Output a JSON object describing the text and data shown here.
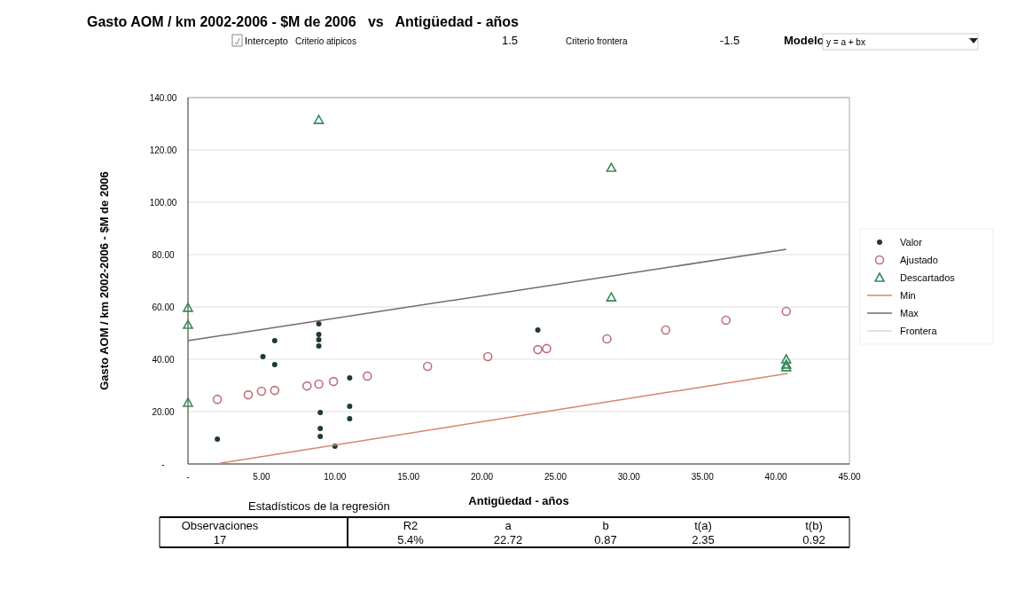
{
  "chart_data": {
    "type": "scatter",
    "title": "Gasto AOM / km 2002-2006 - $M de 2006   vs   Antigüedad - años",
    "xlabel": "Antigüedad - años",
    "ylabel": "Gasto AOM / km 2002-2006 - $M de 2006",
    "xlim": [
      0,
      45
    ],
    "xticks": [
      {
        "value": 0,
        "label": "-"
      },
      {
        "value": 5,
        "label": "5.00"
      },
      {
        "value": 10,
        "label": "10.00"
      },
      {
        "value": 15,
        "label": "15.00"
      },
      {
        "value": 20,
        "label": "20.00"
      },
      {
        "value": 25,
        "label": "25.00"
      },
      {
        "value": 30,
        "label": "30.00"
      },
      {
        "value": 35,
        "label": "35.00"
      },
      {
        "value": 40,
        "label": "40.00"
      },
      {
        "value": 45,
        "label": "45.00"
      }
    ],
    "ylim": [
      0,
      140
    ],
    "yticks": [
      {
        "value": 0,
        "label": "-"
      },
      {
        "value": 20,
        "label": "20.00"
      },
      {
        "value": 40,
        "label": "40.00"
      },
      {
        "value": 60,
        "label": "60.00"
      },
      {
        "value": 80,
        "label": "80.00"
      },
      {
        "value": 100,
        "label": "100.00"
      },
      {
        "value": 120,
        "label": "120.00"
      },
      {
        "value": 140,
        "label": "140.00"
      }
    ],
    "grid": "y",
    "legend": "right",
    "series": [
      {
        "name": "Valor",
        "marker": "circle",
        "color": "#1f3b33",
        "x": [
          2.0,
          5.1,
          5.9,
          5.9,
          8.9,
          8.9,
          8.9,
          8.9,
          9.0,
          9.0,
          9.0,
          10.0,
          11.0,
          11.0,
          11.0,
          23.8
        ],
        "values": [
          9.5,
          41.0,
          47.1,
          38.0,
          53.6,
          49.5,
          47.5,
          45.1,
          19.7,
          13.6,
          10.5,
          6.8,
          32.9,
          22.0,
          17.3,
          51.2
        ]
      },
      {
        "name": "Ajustado",
        "marker": "circle",
        "color": "#c0707a",
        "x": [
          2.0,
          4.1,
          5.0,
          5.9,
          8.1,
          8.9,
          9.9,
          12.2,
          16.3,
          20.4,
          23.8,
          24.4,
          28.5,
          32.5,
          36.6,
          40.7
        ],
        "values": [
          24.7,
          26.4,
          27.8,
          28.1,
          29.8,
          30.5,
          31.5,
          33.6,
          37.3,
          41.0,
          43.7,
          44.1,
          47.8,
          51.2,
          54.9,
          58.3
        ]
      },
      {
        "name": "Descartados",
        "marker": "triangle",
        "color": "#3a8a5a",
        "x": [
          8.9,
          28.8,
          28.8,
          0,
          0,
          0,
          40.7,
          40.7,
          40.7
        ],
        "values": [
          131.5,
          113.2,
          63.7,
          59.7,
          53.2,
          23.4,
          40,
          38,
          37
        ]
      },
      {
        "name": "Min",
        "type": "line",
        "marker": "none",
        "color": "#d4876a",
        "x": [
          2.2,
          40.8
        ],
        "values": [
          0.3,
          34.6
        ]
      },
      {
        "name": "Max",
        "type": "line",
        "marker": "none",
        "color": "#7a6a5e",
        "x": [
          0,
          40.7
        ],
        "values": [
          47.1,
          82.0
        ]
      },
      {
        "name": "Frontera",
        "type": "line",
        "marker": "none",
        "color": "#d8d8d8"
      }
    ],
    "annotations": [
      "Intercepto",
      "Criterio atipicos",
      "1.5",
      "Criterio frontera",
      "-1.5",
      "Modelo",
      "y = a + bx",
      "Estadísticos de la regresión",
      "Observaciones",
      "R2",
      "a",
      "b",
      "t(a)",
      "t(b)",
      "17",
      "5.4%",
      "22.72",
      "0.87",
      "2.35",
      "0.92"
    ]
  }
}
